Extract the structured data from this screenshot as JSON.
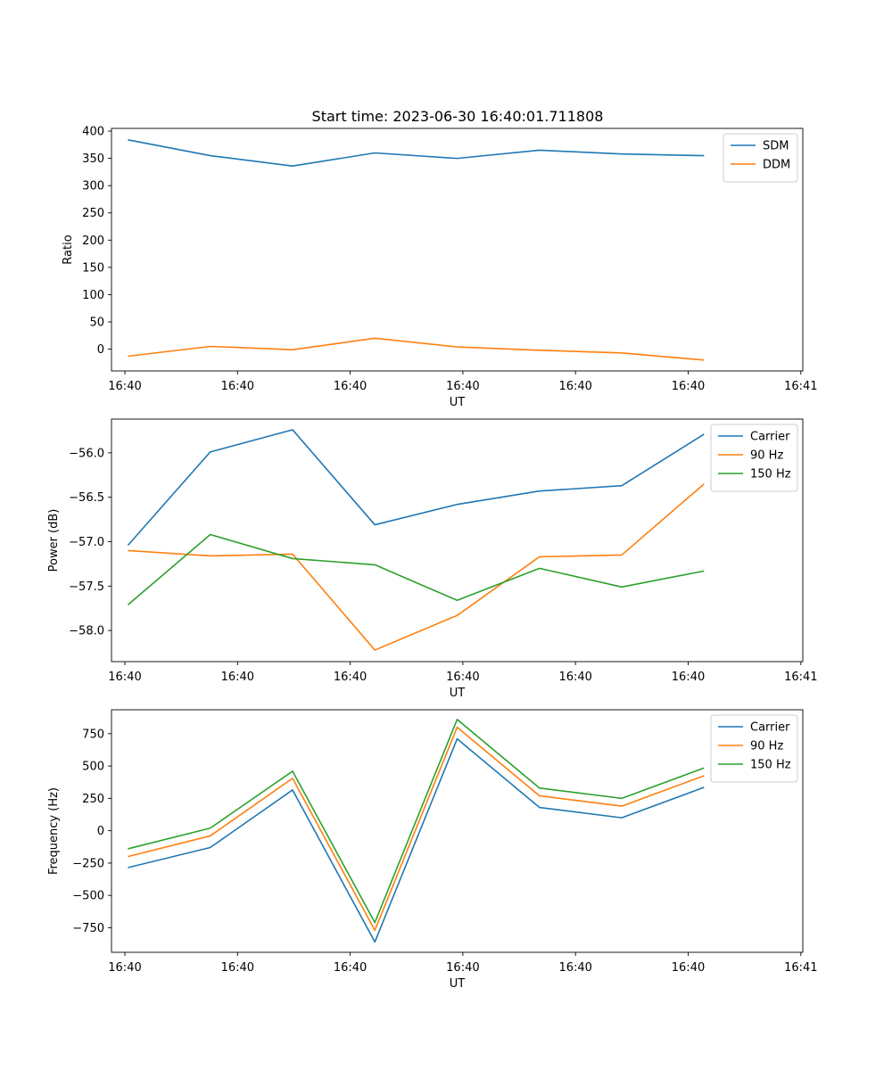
{
  "title": "Start time: 2023-06-30 16:40:01.711808",
  "colors": {
    "C0": "#1f77b4",
    "C1": "#ff7f0e",
    "C2": "#2ca02c"
  },
  "chart_data": [
    {
      "type": "line",
      "title": "Start time: 2023-06-30 16:40:01.711808",
      "xlabel": "UT",
      "ylabel": "Ratio",
      "x": [
        1,
        2,
        3,
        4,
        5,
        6,
        7,
        8
      ],
      "xlim": [
        0.8,
        9.2
      ],
      "xticks": [
        0.8,
        2.3,
        3.8,
        5.3,
        6.8,
        8.3,
        9.8
      ],
      "xticklabels": [
        "16:40",
        "16:40",
        "16:40",
        "16:40",
        "16:40",
        "16:40",
        "16:40"
      ],
      "xlim_note": "",
      "ylim": [
        -40,
        405
      ],
      "yticks": [
        0,
        50,
        100,
        150,
        200,
        250,
        300,
        350,
        400
      ],
      "yticklabels": [
        "0",
        "50",
        "100",
        "150",
        "200",
        "250",
        "300",
        "350",
        "400"
      ],
      "legend": "top-right",
      "series": [
        {
          "name": "SDM",
          "color": "#1f77b4",
          "values": [
            384,
            355,
            336,
            360,
            350,
            365,
            358,
            355
          ]
        },
        {
          "name": "DDM",
          "color": "#ff7f0e",
          "values": [
            -13,
            5,
            -1,
            20,
            4,
            -2,
            -7,
            -20
          ]
        }
      ]
    },
    {
      "type": "line",
      "xlabel": "UT",
      "ylabel": "Power (dB)",
      "x": [
        1,
        2,
        3,
        4,
        5,
        6,
        7,
        8
      ],
      "ylim": [
        -58.35,
        -55.62
      ],
      "yticks": [
        -58.0,
        -57.5,
        -57.0,
        -56.5,
        -56.0
      ],
      "yticklabels": [
        "−58.0",
        "−57.5",
        "−57.0",
        "−56.5",
        "−56.0"
      ],
      "legend": "top-right",
      "series": [
        {
          "name": "Carrier",
          "color": "#1f77b4",
          "values": [
            -57.04,
            -55.99,
            -55.74,
            -56.81,
            -56.58,
            -56.43,
            -56.37,
            -55.79
          ]
        },
        {
          "name": "90 Hz",
          "color": "#ff7f0e",
          "values": [
            -57.1,
            -57.16,
            -57.14,
            -58.22,
            -57.83,
            -57.17,
            -57.15,
            -56.35
          ]
        },
        {
          "name": "150 Hz",
          "color": "#2ca02c",
          "values": [
            -57.71,
            -56.92,
            -57.19,
            -57.26,
            -57.66,
            -57.3,
            -57.51,
            -57.33
          ]
        }
      ]
    },
    {
      "type": "line",
      "xlabel": "UT",
      "ylabel": "Frequency (Hz)",
      "x": [
        1,
        2,
        3,
        4,
        5,
        6,
        7,
        8
      ],
      "ylim": [
        -940,
        935
      ],
      "yticks": [
        -750,
        -500,
        -250,
        0,
        250,
        500,
        750
      ],
      "yticklabels": [
        "−750",
        "−500",
        "−250",
        "0",
        "250",
        "500",
        "750"
      ],
      "legend": "top-right",
      "series": [
        {
          "name": "Carrier",
          "color": "#1f77b4",
          "values": [
            -285,
            -130,
            315,
            -860,
            710,
            180,
            100,
            335
          ]
        },
        {
          "name": "90 Hz",
          "color": "#ff7f0e",
          "values": [
            -200,
            -40,
            405,
            -770,
            800,
            270,
            190,
            425
          ]
        },
        {
          "name": "150 Hz",
          "color": "#2ca02c",
          "values": [
            -140,
            20,
            460,
            -710,
            860,
            330,
            250,
            485
          ]
        }
      ]
    }
  ]
}
